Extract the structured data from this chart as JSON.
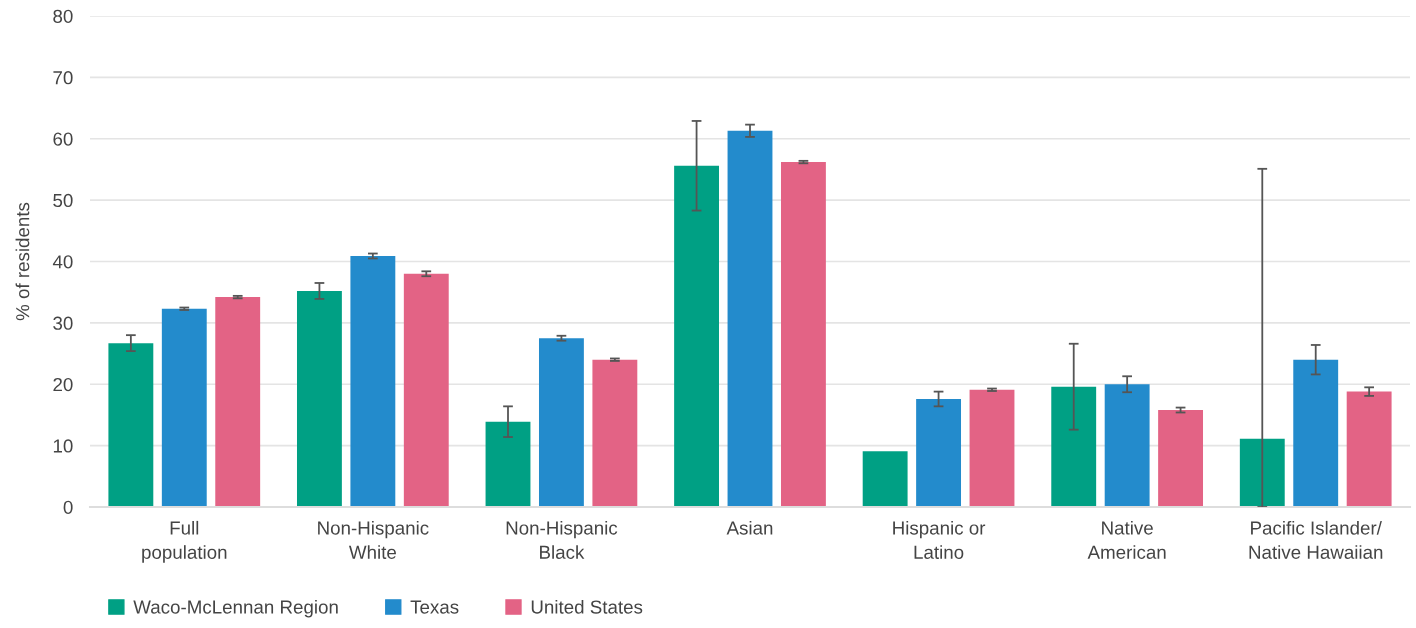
{
  "chart_data": {
    "type": "bar",
    "ylabel": "% of residents",
    "categories": [
      "Full\npopulation",
      "Non-Hispanic\nWhite",
      "Non-Hispanic\nBlack",
      "Asian",
      "Hispanic or\nLatino",
      "Native\nAmerican",
      "Pacific Islander/\nNative Hawaiian"
    ],
    "series": [
      {
        "name": "Waco-McLennan Region",
        "color": "#00a084",
        "values": [
          26.7,
          35.2,
          13.9,
          55.6,
          9.1,
          19.6,
          11.1
        ],
        "errors": [
          1.3,
          1.3,
          2.5,
          7.3,
          null,
          7,
          [
            0,
            55.1
          ]
        ]
      },
      {
        "name": "Texas",
        "color": "#238bcc",
        "values": [
          32.3,
          40.9,
          27.5,
          61.3,
          17.6,
          20.0,
          24.0
        ],
        "errors": [
          0.2,
          0.4,
          0.4,
          1,
          1.2,
          1.3,
          2.4
        ]
      },
      {
        "name": "United States",
        "color": "#e36385",
        "values": [
          34.2,
          38.0,
          24.0,
          56.2,
          19.1,
          15.8,
          18.8
        ],
        "errors": [
          0.2,
          0.4,
          0.2,
          0.2,
          0.2,
          0.4,
          0.7
        ]
      }
    ],
    "ylim": [
      0,
      80
    ],
    "yticks": [
      0,
      10,
      20,
      30,
      40,
      50,
      60,
      70,
      80
    ],
    "grid": "y",
    "legend": "bottom left"
  }
}
